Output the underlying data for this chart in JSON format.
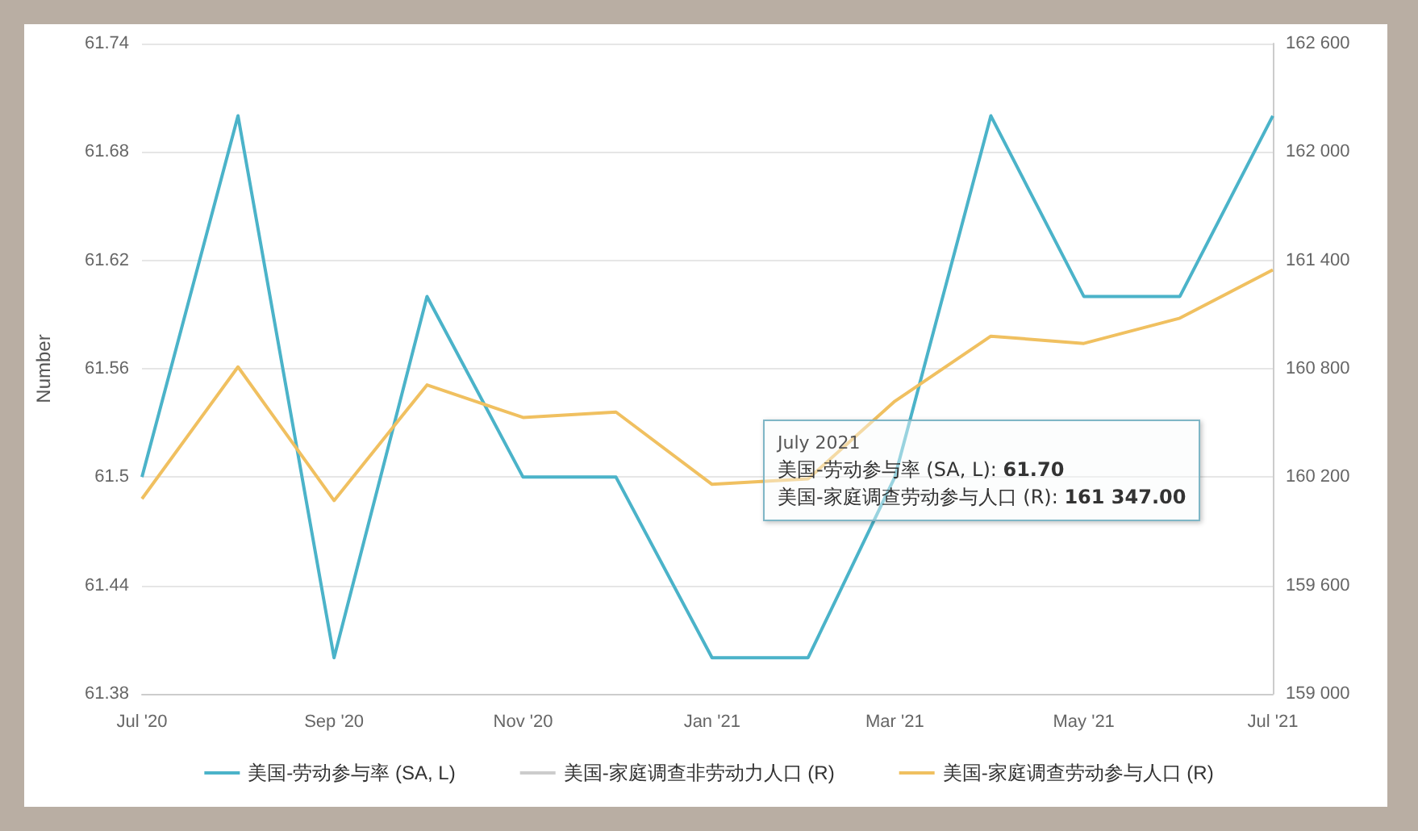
{
  "chart_data": {
    "type": "line",
    "ylabel": "Number",
    "x": [
      "2020-07",
      "2020-08",
      "2020-09",
      "2020-10",
      "2020-11",
      "2020-12",
      "2021-01",
      "2021-02",
      "2021-03",
      "2021-04",
      "2021-05",
      "2021-06",
      "2021-07"
    ],
    "series": [
      {
        "name": "美国-劳动参与率 (SA, L)",
        "color": "#4bb3c9",
        "values": [
          61.5,
          61.7,
          61.4,
          61.6,
          61.5,
          61.5,
          61.4,
          61.4,
          61.5,
          61.7,
          61.6,
          61.6,
          61.7
        ]
      },
      {
        "name": "美国-家庭调查非劳动力人口 (R)",
        "color": "#cccccc",
        "axis": "y2",
        "values": [
          null,
          null,
          null,
          null,
          null,
          null,
          null,
          null,
          null,
          null,
          null,
          null,
          null
        ]
      },
      {
        "name": "美国-家庭调查劳动参与人口 (R)",
        "color": "#f0c060",
        "axis": "y2",
        "values": [
          160080,
          160810,
          160070,
          160710,
          160530,
          160560,
          160160,
          160190,
          160620,
          160980,
          160940,
          161080,
          161347
        ]
      }
    ],
    "xlim": [
      "2020-07",
      "2021-07"
    ],
    "xticks": [
      {
        "value": "2020-07",
        "label": "Jul '20"
      },
      {
        "value": "2020-09",
        "label": "Sep '20"
      },
      {
        "value": "2020-11",
        "label": "Nov '20"
      },
      {
        "value": "2021-01",
        "label": "Jan '21"
      },
      {
        "value": "2021-03",
        "label": "Mar '21"
      },
      {
        "value": "2021-05",
        "label": "May '21"
      },
      {
        "value": "2021-07",
        "label": "Jul '21"
      }
    ],
    "ylim": [
      61.38,
      61.74
    ],
    "yticks": [
      61.38,
      61.44,
      61.5,
      61.56,
      61.62,
      61.68,
      61.74
    ],
    "y2lim": [
      159000,
      162600
    ],
    "y2ticks": [
      {
        "value": 159000,
        "label": "159 000"
      },
      {
        "value": 159600,
        "label": "159 600"
      },
      {
        "value": 160200,
        "label": "160 200"
      },
      {
        "value": 160800,
        "label": "160 800"
      },
      {
        "value": 161400,
        "label": "161 400"
      },
      {
        "value": 162000,
        "label": "162 000"
      },
      {
        "value": 162600,
        "label": "162 600"
      }
    ],
    "grid": "y",
    "legend": "bottom",
    "marker": "none",
    "line_style": "solid",
    "annotations": [
      "July 2021",
      "美国-劳动参与率 (SA, L): 61.70",
      "美国-家庭调查劳动参与人口 (R): 161 347.00"
    ]
  }
}
